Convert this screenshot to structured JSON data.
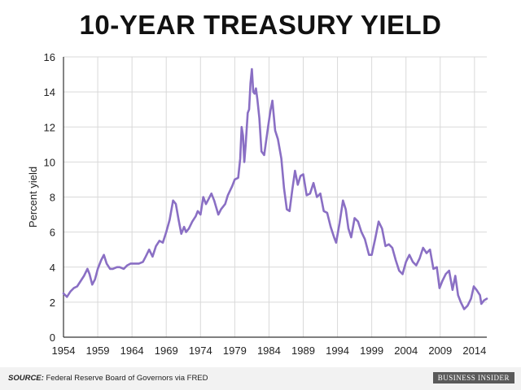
{
  "title": "10-YEAR TREASURY YIELD",
  "source": {
    "label": "SOURCE:",
    "text": "Federal Reserve Board of Governors via FRED"
  },
  "brand": "BUSINESS INSIDER",
  "colors": {
    "line": "#8a6fc4",
    "grid": "#d9d9d9",
    "axis": "#333333",
    "text": "#222222",
    "footer_bg": "#f2f2f2"
  },
  "chart_data": {
    "type": "line",
    "title": "10-YEAR TREASURY YIELD",
    "xlabel": "",
    "ylabel": "Percent yield",
    "xlim": [
      1954,
      2015.8
    ],
    "ylim": [
      0,
      16
    ],
    "x_ticks": [
      1954,
      1959,
      1964,
      1969,
      1974,
      1979,
      1984,
      1989,
      1994,
      1999,
      2004,
      2009,
      2014
    ],
    "y_ticks": [
      0,
      2,
      4,
      6,
      8,
      10,
      12,
      14,
      16
    ],
    "grid": true,
    "legend": "none",
    "series": [
      {
        "color": "#8a6fc4",
        "x": [
          1954.0,
          1954.5,
          1955.0,
          1955.5,
          1956.0,
          1956.5,
          1957.0,
          1957.5,
          1957.8,
          1958.2,
          1958.6,
          1959.0,
          1959.5,
          1959.9,
          1960.3,
          1960.8,
          1961.2,
          1961.8,
          1962.2,
          1962.8,
          1963.3,
          1963.8,
          1964.3,
          1965.0,
          1965.6,
          1966.0,
          1966.5,
          1967.0,
          1967.5,
          1968.0,
          1968.5,
          1969.0,
          1969.5,
          1970.0,
          1970.4,
          1970.8,
          1971.2,
          1971.6,
          1971.9,
          1972.3,
          1972.8,
          1973.3,
          1973.6,
          1974.0,
          1974.4,
          1974.8,
          1975.2,
          1975.6,
          1976.0,
          1976.6,
          1977.0,
          1977.6,
          1978.0,
          1978.6,
          1979.0,
          1979.5,
          1979.8,
          1980.0,
          1980.2,
          1980.4,
          1980.6,
          1980.9,
          1981.1,
          1981.3,
          1981.5,
          1981.7,
          1981.9,
          1982.1,
          1982.3,
          1982.6,
          1982.9,
          1983.3,
          1983.8,
          1984.2,
          1984.5,
          1984.9,
          1985.3,
          1985.8,
          1986.2,
          1986.6,
          1987.0,
          1987.4,
          1987.8,
          1988.2,
          1988.6,
          1989.0,
          1989.5,
          1990.0,
          1990.5,
          1991.0,
          1991.5,
          1992.0,
          1992.5,
          1993.0,
          1993.5,
          1993.8,
          1994.3,
          1994.8,
          1995.2,
          1995.6,
          1996.0,
          1996.5,
          1997.0,
          1997.5,
          1998.0,
          1998.6,
          1999.0,
          1999.5,
          2000.0,
          2000.5,
          2001.0,
          2001.5,
          2002.0,
          2002.5,
          2003.0,
          2003.5,
          2004.0,
          2004.5,
          2005.0,
          2005.5,
          2006.0,
          2006.5,
          2007.0,
          2007.5,
          2008.0,
          2008.5,
          2008.9,
          2009.3,
          2009.8,
          2010.3,
          2010.8,
          2011.2,
          2011.6,
          2012.0,
          2012.5,
          2013.0,
          2013.5,
          2013.9,
          2014.3,
          2014.8,
          2015.0,
          2015.4,
          2015.8
        ],
        "y": [
          2.5,
          2.3,
          2.6,
          2.8,
          2.9,
          3.2,
          3.5,
          3.9,
          3.6,
          3.0,
          3.3,
          3.9,
          4.4,
          4.7,
          4.2,
          3.9,
          3.9,
          4.0,
          4.0,
          3.9,
          4.1,
          4.2,
          4.2,
          4.2,
          4.3,
          4.6,
          5.0,
          4.6,
          5.2,
          5.5,
          5.4,
          6.0,
          6.7,
          7.8,
          7.6,
          6.7,
          5.9,
          6.3,
          6.0,
          6.2,
          6.6,
          6.9,
          7.2,
          7.0,
          8.0,
          7.6,
          7.9,
          8.2,
          7.8,
          7.0,
          7.3,
          7.6,
          8.1,
          8.6,
          9.0,
          9.1,
          10.2,
          12.0,
          11.5,
          10.0,
          11.0,
          12.8,
          13.0,
          14.5,
          15.3,
          14.0,
          13.9,
          14.2,
          13.6,
          12.5,
          10.6,
          10.4,
          11.8,
          12.9,
          13.5,
          11.8,
          11.3,
          10.2,
          8.5,
          7.3,
          7.2,
          8.4,
          9.5,
          8.7,
          9.2,
          9.3,
          8.1,
          8.2,
          8.8,
          8.0,
          8.2,
          7.2,
          7.1,
          6.3,
          5.7,
          5.4,
          6.5,
          7.8,
          7.3,
          6.2,
          5.7,
          6.8,
          6.6,
          6.0,
          5.6,
          4.7,
          4.7,
          5.6,
          6.6,
          6.2,
          5.2,
          5.3,
          5.1,
          4.4,
          3.8,
          3.6,
          4.3,
          4.7,
          4.3,
          4.1,
          4.5,
          5.1,
          4.8,
          5.0,
          3.9,
          4.0,
          2.8,
          3.2,
          3.6,
          3.8,
          2.7,
          3.5,
          2.4,
          2.0,
          1.6,
          1.8,
          2.2,
          2.9,
          2.7,
          2.4,
          1.9,
          2.1,
          2.2
        ]
      }
    ]
  }
}
